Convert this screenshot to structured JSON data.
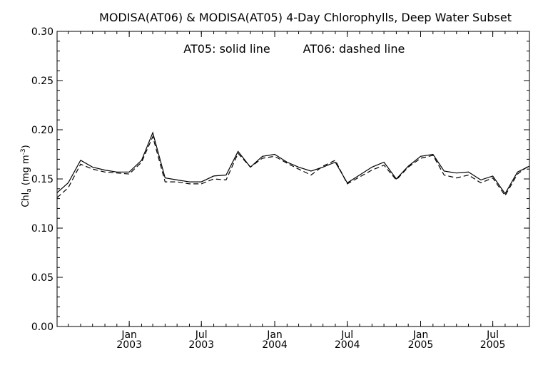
{
  "chart_data": {
    "type": "line",
    "title": "MODISA(AT06) & MODISA(AT05) 4-Day Chlorophylls, Deep Water Subset",
    "annotation_solid": "AT05: solid line",
    "annotation_dashed": "AT06: dashed line",
    "ylabel": "Chl",
    "ylabel_sub": "a",
    "ylabel_units_pre": " (mg m",
    "ylabel_units_sup": "-3",
    "ylabel_units_post": ")",
    "ylim": [
      0.0,
      0.3
    ],
    "yticks": [
      0.0,
      0.05,
      0.1,
      0.15,
      0.2,
      0.25,
      0.3
    ],
    "yticklabels": [
      "0.00",
      "0.05",
      "0.10",
      "0.15",
      "0.20",
      "0.25",
      "0.30"
    ],
    "xlim": [
      "2002-07-04",
      "2005-10-01"
    ],
    "xticks": [
      {
        "date": "2003-01-01",
        "month": "Jan",
        "year": "2003"
      },
      {
        "date": "2003-07-01",
        "month": "Jul",
        "year": "2003"
      },
      {
        "date": "2004-01-01",
        "month": "Jan",
        "year": "2004"
      },
      {
        "date": "2004-07-01",
        "month": "Jul",
        "year": "2004"
      },
      {
        "date": "2005-01-01",
        "month": "Jan",
        "year": "2005"
      },
      {
        "date": "2005-07-01",
        "month": "Jul",
        "year": "2005"
      }
    ],
    "series": [
      {
        "name": "AT05",
        "style": "solid",
        "color": "#000000",
        "x": [
          "2002-07-04",
          "2002-08-01",
          "2002-09-01",
          "2002-10-01",
          "2002-11-01",
          "2002-12-01",
          "2003-01-01",
          "2003-02-01",
          "2003-03-01",
          "2003-04-01",
          "2003-05-01",
          "2003-06-01",
          "2003-07-01",
          "2003-08-01",
          "2003-09-01",
          "2003-10-01",
          "2003-11-01",
          "2003-12-01",
          "2004-01-01",
          "2004-02-01",
          "2004-03-01",
          "2004-04-01",
          "2004-05-01",
          "2004-06-01",
          "2004-07-01",
          "2004-08-01",
          "2004-09-01",
          "2004-10-01",
          "2004-11-01",
          "2004-12-01",
          "2005-01-01",
          "2005-02-01",
          "2005-03-01",
          "2005-04-01",
          "2005-05-01",
          "2005-06-01",
          "2005-07-01",
          "2005-08-01",
          "2005-09-01",
          "2005-10-01"
        ],
        "values": [
          0.136,
          0.146,
          0.169,
          0.162,
          0.159,
          0.157,
          0.157,
          0.169,
          0.197,
          0.151,
          0.149,
          0.147,
          0.147,
          0.153,
          0.154,
          0.178,
          0.162,
          0.173,
          0.175,
          0.167,
          0.162,
          0.158,
          0.162,
          0.167,
          0.146,
          0.154,
          0.162,
          0.167,
          0.15,
          0.163,
          0.173,
          0.175,
          0.158,
          0.156,
          0.157,
          0.149,
          0.153,
          0.135,
          0.157,
          0.163
        ]
      },
      {
        "name": "AT06",
        "style": "dashed",
        "color": "#000000",
        "x": [
          "2002-07-04",
          "2002-08-01",
          "2002-09-01",
          "2002-10-01",
          "2002-11-01",
          "2002-12-01",
          "2003-01-01",
          "2003-02-01",
          "2003-03-01",
          "2003-04-01",
          "2003-05-01",
          "2003-06-01",
          "2003-07-01",
          "2003-08-01",
          "2003-09-01",
          "2003-10-01",
          "2003-11-01",
          "2003-12-01",
          "2004-01-01",
          "2004-02-01",
          "2004-03-01",
          "2004-04-01",
          "2004-05-01",
          "2004-06-01",
          "2004-07-01",
          "2004-08-01",
          "2004-09-01",
          "2004-10-01",
          "2004-11-01",
          "2004-12-01",
          "2005-01-01",
          "2005-02-01",
          "2005-03-01",
          "2005-04-01",
          "2005-05-01",
          "2005-06-01",
          "2005-07-01",
          "2005-08-01",
          "2005-09-01",
          "2005-10-01"
        ],
        "values": [
          0.131,
          0.141,
          0.165,
          0.16,
          0.157,
          0.156,
          0.155,
          0.167,
          0.193,
          0.147,
          0.147,
          0.145,
          0.145,
          0.15,
          0.149,
          0.176,
          0.162,
          0.171,
          0.173,
          0.166,
          0.16,
          0.154,
          0.163,
          0.169,
          0.145,
          0.152,
          0.159,
          0.164,
          0.149,
          0.162,
          0.171,
          0.174,
          0.154,
          0.151,
          0.154,
          0.146,
          0.151,
          0.133,
          0.155,
          0.164
        ]
      }
    ],
    "grid": false,
    "legend": "none"
  }
}
